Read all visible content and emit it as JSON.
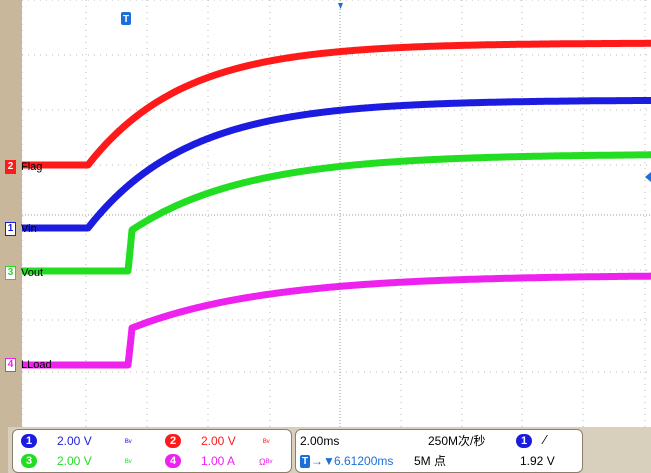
{
  "channels": {
    "ch1": {
      "num": "1",
      "label": "Vin",
      "color": "#1c1ce0",
      "scale": "2.00 V",
      "coupling": "ᴮᵛ"
    },
    "ch2": {
      "num": "2",
      "label": "Flag",
      "color": "#ff1a1a",
      "scale": "2.00 V",
      "coupling": "ᴮᵛ"
    },
    "ch3": {
      "num": "3",
      "label": "Vout",
      "color": "#22dd22",
      "scale": "2.00 V",
      "coupling": "ᴮᵛ"
    },
    "ch4": {
      "num": "4",
      "label": "LLoad",
      "color": "#ee22ee",
      "scale": "1.00 A",
      "coupling": "Ωᴮᵛ"
    }
  },
  "trigger_marker": {
    "label": "T",
    "icon": "trigger-position-icon"
  },
  "timebase": {
    "scale": "2.00ms",
    "sample_rate": "250M次/秒",
    "position": "6.61200ms",
    "position_prefix": "→▼",
    "record_length": "5M 点"
  },
  "trigger": {
    "channel": "1",
    "slope_icon": "rising-edge-icon",
    "slope_glyph": "∕",
    "level": "1.92 V"
  }
}
